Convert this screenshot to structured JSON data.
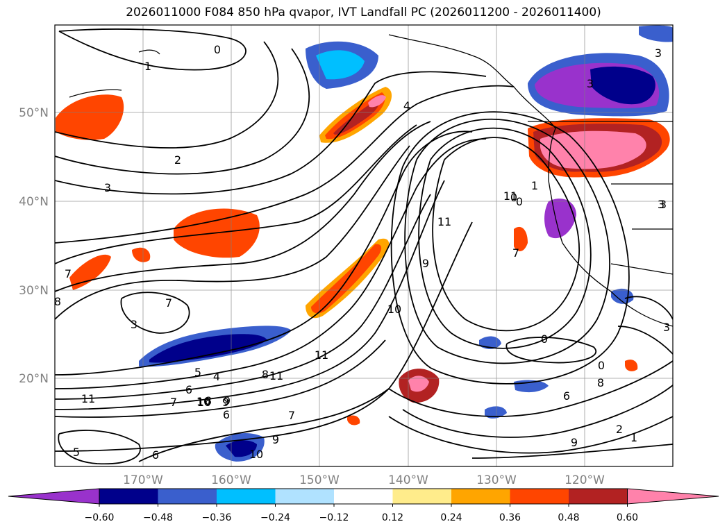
{
  "title": "2026011000 F084 850 hPa qvapor, IVT Landfall PC (2026011200 - 2026011400)",
  "map": {
    "lat_labels": [
      "50°N",
      "40°N",
      "30°N",
      "20°N"
    ],
    "lon_labels": [
      "170°W",
      "160°W",
      "150°W",
      "140°W",
      "130°W",
      "120°W"
    ],
    "contour_labels": [
      "0",
      "1",
      "2",
      "3",
      "4",
      "3",
      "3",
      "3",
      "7",
      "8",
      "7",
      "3",
      "4",
      "5",
      "6",
      "7",
      "8",
      "9",
      "10",
      "11",
      "10",
      "9",
      "6",
      "5",
      "6",
      "7",
      "8",
      "9",
      "10",
      "11",
      "11",
      "10",
      "9",
      "11",
      "11",
      "7",
      "6",
      "0",
      "8",
      "3",
      "1",
      "0",
      "0",
      "0",
      "3",
      "9",
      "2",
      "1"
    ]
  },
  "colorbar": {
    "colors": [
      "#9932CC",
      "#00008B",
      "#3A5FCD",
      "#00BFFF",
      "#B0E2FF",
      "#FFFFFF",
      "#FFEC8B",
      "#FFA500",
      "#FF4500",
      "#B22222",
      "#FF82AB"
    ],
    "tick_labels": [
      "−0.60",
      "−0.48",
      "−0.36",
      "−0.24",
      "−0.12",
      "0.12",
      "0.24",
      "0.36",
      "0.48",
      "0.60"
    ]
  }
}
